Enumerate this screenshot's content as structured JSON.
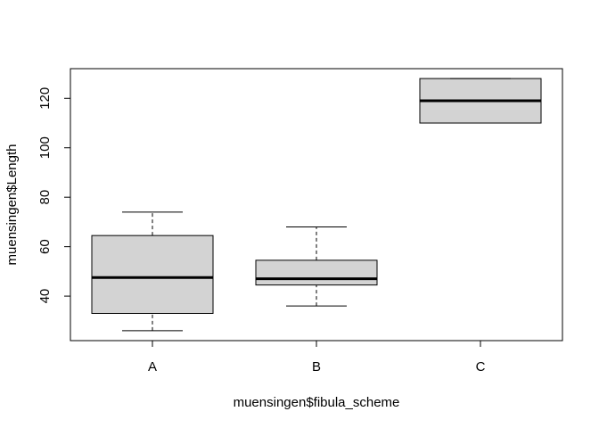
{
  "chart_data": {
    "type": "box",
    "title": "",
    "xlabel": "muensingen$fibula_scheme",
    "ylabel": "muensingen$Length",
    "categories": [
      "A",
      "B",
      "C"
    ],
    "boxes": [
      {
        "name": "A",
        "whisker_low": 26,
        "q1": 33,
        "median": 47.5,
        "q3": 64.5,
        "whisker_high": 74
      },
      {
        "name": "B",
        "whisker_low": 36,
        "q1": 44.5,
        "median": 47,
        "q3": 54.5,
        "whisker_high": 68
      },
      {
        "name": "C",
        "whisker_low": 110,
        "q1": 110,
        "median": 119,
        "q3": 128,
        "whisker_high": 128
      }
    ],
    "ylim": [
      22,
      132
    ],
    "yticks": [
      40,
      60,
      80,
      100,
      120
    ],
    "ytick_labels": [
      "40",
      "60",
      "80",
      "100",
      "120"
    ],
    "grid": false,
    "colors": {
      "box_fill": "#d3d3d3",
      "stroke": "#000000",
      "background": "#ffffff"
    }
  }
}
